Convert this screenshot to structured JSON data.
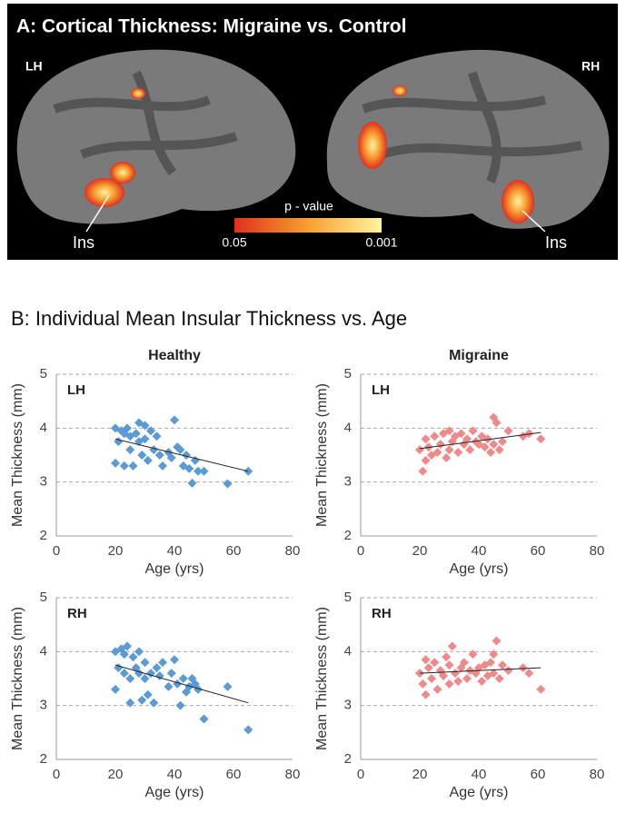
{
  "panel_a": {
    "title": "A:  Cortical Thickness: Migraine vs. Control",
    "left_hemisphere": "LH",
    "right_hemisphere": "RH",
    "left_region": "Ins",
    "right_region": "Ins",
    "colorbar_title": "p - value",
    "colorbar_low": "0.05",
    "colorbar_high": "0.001"
  },
  "panel_b_title": "B:  Individual Mean Insular Thickness vs. Age",
  "chart_data": [
    {
      "type": "scatter",
      "title": "Healthy",
      "annotation": "LH",
      "xlabel": "Age (yrs)",
      "ylabel": "Mean Thickness (mm)",
      "color": "#5b9bd5",
      "x": [
        20,
        20,
        21,
        22,
        23,
        23,
        24,
        25,
        25,
        26,
        27,
        28,
        28,
        29,
        30,
        30,
        31,
        32,
        33,
        34,
        35,
        36,
        38,
        39,
        40,
        41,
        42,
        43,
        44,
        45,
        46,
        47,
        48,
        50,
        58,
        65
      ],
      "y": [
        4.0,
        3.35,
        3.75,
        3.95,
        3.3,
        3.9,
        4.0,
        3.6,
        3.85,
        3.3,
        3.9,
        3.75,
        4.1,
        3.5,
        3.8,
        4.05,
        3.4,
        3.95,
        3.6,
        3.85,
        3.5,
        3.3,
        3.55,
        3.45,
        4.15,
        3.65,
        3.6,
        3.3,
        3.5,
        3.25,
        2.98,
        3.4,
        3.2,
        3.2,
        2.97,
        3.2
      ],
      "trendline": {
        "x": [
          20,
          65
        ],
        "y": [
          3.8,
          3.2
        ]
      },
      "xlim": [
        0,
        80
      ],
      "xticks": [
        0,
        20,
        40,
        60,
        80
      ],
      "ylim": [
        2,
        5
      ],
      "yticks": [
        2,
        3,
        4,
        5
      ],
      "grid": true
    },
    {
      "type": "scatter",
      "title": "Migraine",
      "annotation": "LH",
      "xlabel": "Age (yrs)",
      "ylabel": "Mean Thickness (mm)",
      "color": "#ef8a8a",
      "x": [
        20,
        21,
        22,
        22,
        23,
        24,
        25,
        26,
        27,
        28,
        29,
        30,
        30,
        31,
        32,
        33,
        34,
        35,
        36,
        37,
        38,
        39,
        40,
        41,
        42,
        43,
        44,
        45,
        45,
        46,
        47,
        48,
        50,
        55,
        57,
        61
      ],
      "y": [
        3.6,
        3.2,
        3.8,
        3.4,
        3.65,
        3.5,
        3.85,
        3.55,
        3.7,
        3.9,
        3.45,
        3.95,
        3.6,
        3.75,
        3.85,
        3.55,
        3.9,
        3.7,
        3.8,
        3.6,
        3.95,
        3.75,
        3.7,
        3.85,
        3.65,
        3.8,
        3.55,
        4.2,
        3.7,
        4.1,
        3.6,
        3.75,
        3.95,
        3.85,
        3.9,
        3.8
      ],
      "trendline": {
        "x": [
          20,
          61
        ],
        "y": [
          3.62,
          3.92
        ]
      },
      "xlim": [
        0,
        80
      ],
      "xticks": [
        0,
        20,
        40,
        60,
        80
      ],
      "ylim": [
        2,
        5
      ],
      "yticks": [
        2,
        3,
        4,
        5
      ],
      "grid": true
    },
    {
      "type": "scatter",
      "annotation": "RH",
      "xlabel": "Age (yrs)",
      "ylabel": "Mean Thickness (mm)",
      "color": "#5b9bd5",
      "x": [
        20,
        20,
        21,
        22,
        23,
        23,
        24,
        25,
        25,
        26,
        27,
        28,
        28,
        29,
        30,
        30,
        31,
        32,
        33,
        34,
        35,
        36,
        38,
        39,
        40,
        41,
        42,
        43,
        44,
        45,
        46,
        47,
        48,
        50,
        58,
        65
      ],
      "y": [
        4.0,
        3.3,
        3.7,
        4.05,
        3.6,
        3.95,
        4.1,
        3.5,
        3.05,
        3.9,
        3.7,
        3.6,
        4.0,
        3.1,
        3.5,
        3.8,
        3.2,
        3.6,
        3.05,
        3.7,
        3.55,
        3.8,
        3.35,
        3.6,
        3.85,
        3.4,
        3.0,
        3.5,
        3.25,
        3.35,
        3.5,
        3.4,
        3.3,
        2.75,
        3.35,
        2.55
      ],
      "trendline": {
        "x": [
          20,
          65
        ],
        "y": [
          3.75,
          3.05
        ]
      },
      "xlim": [
        0,
        80
      ],
      "xticks": [
        0,
        20,
        40,
        60,
        80
      ],
      "ylim": [
        2,
        5
      ],
      "yticks": [
        2,
        3,
        4,
        5
      ],
      "grid": true
    },
    {
      "type": "scatter",
      "annotation": "RH",
      "xlabel": "Age (yrs)",
      "ylabel": "Mean Thickness (mm)",
      "color": "#ef8a8a",
      "x": [
        20,
        21,
        22,
        22,
        23,
        24,
        25,
        26,
        27,
        28,
        29,
        30,
        30,
        31,
        32,
        33,
        34,
        35,
        36,
        37,
        38,
        39,
        40,
        41,
        42,
        43,
        44,
        45,
        45,
        46,
        47,
        48,
        50,
        55,
        57,
        61
      ],
      "y": [
        3.6,
        3.4,
        3.85,
        3.2,
        3.7,
        3.5,
        3.8,
        3.3,
        3.65,
        3.55,
        3.9,
        3.4,
        3.75,
        4.1,
        3.6,
        3.45,
        3.7,
        3.8,
        3.5,
        3.65,
        3.95,
        3.6,
        3.7,
        3.45,
        3.75,
        3.55,
        3.8,
        3.6,
        3.95,
        4.2,
        3.5,
        3.75,
        3.65,
        3.7,
        3.6,
        3.3
      ],
      "trendline": {
        "x": [
          20,
          61
        ],
        "y": [
          3.6,
          3.7
        ]
      },
      "xlim": [
        0,
        80
      ],
      "xticks": [
        0,
        20,
        40,
        60,
        80
      ],
      "ylim": [
        2,
        5
      ],
      "yticks": [
        2,
        3,
        4,
        5
      ],
      "grid": true
    }
  ]
}
